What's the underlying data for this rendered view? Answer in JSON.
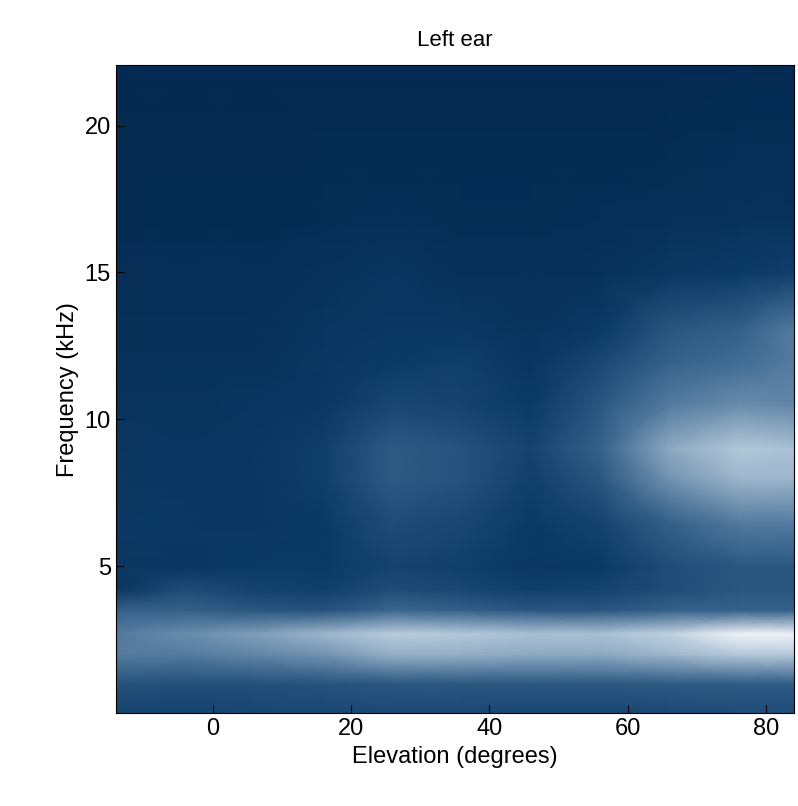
{
  "chart_data": {
    "type": "heatmap",
    "title": "Left ear",
    "x_label": "Elevation (degrees)",
    "y_label": "Frequency (kHz)",
    "x": [
      -14,
      -4,
      6,
      16,
      26,
      36,
      46,
      56,
      66,
      76,
      84
    ],
    "y": [
      0,
      1,
      2,
      2.7,
      3.5,
      4.2,
      5,
      6.5,
      8,
      9,
      10.5,
      12,
      13,
      15,
      17,
      19,
      22.05
    ],
    "cells": [
      [
        0.3,
        0.3,
        0.32,
        0.32,
        0.33,
        0.33,
        0.32,
        0.32,
        0.33,
        0.34,
        0.34
      ],
      [
        0.38,
        0.36,
        0.36,
        0.38,
        0.4,
        0.4,
        0.4,
        0.4,
        0.42,
        0.42,
        0.42
      ],
      [
        0.55,
        0.55,
        0.58,
        0.62,
        0.7,
        0.7,
        0.68,
        0.68,
        0.72,
        0.78,
        0.78
      ],
      [
        0.55,
        0.6,
        0.65,
        0.72,
        0.8,
        0.78,
        0.75,
        0.75,
        0.82,
        0.95,
        0.95
      ],
      [
        0.45,
        0.45,
        0.4,
        0.38,
        0.48,
        0.45,
        0.4,
        0.4,
        0.45,
        0.45,
        0.45
      ],
      [
        0.2,
        0.35,
        0.3,
        0.28,
        0.35,
        0.32,
        0.28,
        0.3,
        0.35,
        0.4,
        0.4
      ],
      [
        0.22,
        0.2,
        0.25,
        0.25,
        0.3,
        0.28,
        0.22,
        0.25,
        0.35,
        0.4,
        0.4
      ],
      [
        0.25,
        0.22,
        0.2,
        0.25,
        0.35,
        0.32,
        0.25,
        0.3,
        0.45,
        0.55,
        0.55
      ],
      [
        0.22,
        0.2,
        0.2,
        0.28,
        0.42,
        0.38,
        0.28,
        0.4,
        0.62,
        0.72,
        0.72
      ],
      [
        0.2,
        0.18,
        0.2,
        0.28,
        0.42,
        0.38,
        0.3,
        0.45,
        0.68,
        0.78,
        0.75
      ],
      [
        0.15,
        0.15,
        0.18,
        0.22,
        0.32,
        0.3,
        0.25,
        0.4,
        0.55,
        0.6,
        0.58
      ],
      [
        0.12,
        0.12,
        0.12,
        0.2,
        0.25,
        0.28,
        0.18,
        0.32,
        0.45,
        0.5,
        0.55
      ],
      [
        0.1,
        0.1,
        0.1,
        0.18,
        0.22,
        0.22,
        0.15,
        0.25,
        0.4,
        0.45,
        0.55
      ],
      [
        0.08,
        0.08,
        0.08,
        0.12,
        0.18,
        0.1,
        0.1,
        0.12,
        0.2,
        0.25,
        0.28
      ],
      [
        0.05,
        0.05,
        0.05,
        0.06,
        0.08,
        0.06,
        0.06,
        0.08,
        0.1,
        0.12,
        0.12
      ],
      [
        0.03,
        0.03,
        0.03,
        0.04,
        0.05,
        0.04,
        0.04,
        0.05,
        0.06,
        0.08,
        0.08
      ],
      [
        0.02,
        0.02,
        0.02,
        0.02,
        0.02,
        0.02,
        0.02,
        0.02,
        0.02,
        0.03,
        0.03
      ]
    ],
    "value_range": [
      0,
      1
    ],
    "xlim": [
      -14,
      84
    ],
    "ylim": [
      0,
      22.05
    ],
    "xticks": [
      0,
      20,
      40,
      60,
      80
    ],
    "yticks": [
      5,
      10,
      15,
      20
    ]
  }
}
